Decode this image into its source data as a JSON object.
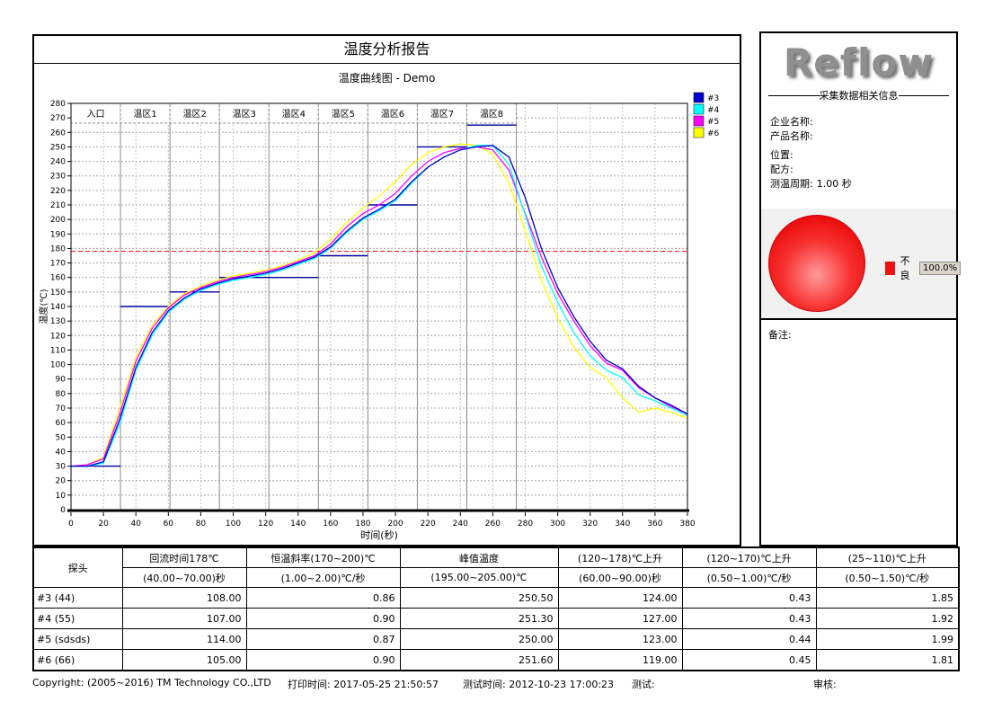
{
  "report": {
    "title": "温度分析报告",
    "chart_title": "温度曲线图 - Demo"
  },
  "chart_data": {
    "type": "line",
    "title": "温度曲线图 - Demo",
    "xlabel": "时间(秒)",
    "ylabel": "温度(℃)",
    "xlim": [
      0,
      380
    ],
    "ylim": [
      0,
      280
    ],
    "x_tick_step": 20,
    "y_tick_step": 10,
    "grid": true,
    "legend_position": "top-right-outside",
    "reflow_reference_line_c": 178,
    "reflow_line_color": "#ff0000",
    "setpoint_color": "#0000a0",
    "zone_width_s": 30.5,
    "zones": [
      {
        "label": "入口",
        "setpoint_c": 30
      },
      {
        "label": "温区1",
        "setpoint_c": 140
      },
      {
        "label": "温区2",
        "setpoint_c": 150
      },
      {
        "label": "温区3",
        "setpoint_c": 160
      },
      {
        "label": "温区4",
        "setpoint_c": 160
      },
      {
        "label": "温区5",
        "setpoint_c": 175
      },
      {
        "label": "温区6",
        "setpoint_c": 210
      },
      {
        "label": "温区7",
        "setpoint_c": 250
      },
      {
        "label": "温区8",
        "setpoint_c": 265
      }
    ],
    "x": [
      0,
      10,
      20,
      30,
      40,
      50,
      60,
      70,
      80,
      90,
      100,
      110,
      120,
      130,
      140,
      150,
      160,
      170,
      180,
      190,
      200,
      210,
      220,
      230,
      240,
      250,
      260,
      270,
      280,
      290,
      300,
      310,
      320,
      330,
      340,
      350,
      360,
      370,
      380
    ],
    "series": [
      {
        "name": "#3",
        "color": "#0000d0",
        "values": [
          30,
          30,
          33,
          62,
          98,
          122,
          137,
          146,
          152,
          156,
          159,
          161,
          163,
          166,
          170,
          174,
          181,
          192,
          201,
          207,
          214,
          226,
          236,
          243,
          248,
          250,
          251,
          243,
          215,
          180,
          153,
          133,
          116,
          103,
          97,
          85,
          77,
          72,
          66
        ]
      },
      {
        "name": "#4",
        "color": "#00ffff",
        "values": [
          30,
          30,
          32,
          59,
          96,
          120,
          136,
          145,
          151,
          155,
          158,
          160,
          162,
          165,
          169,
          173,
          180,
          191,
          200,
          206,
          213,
          225,
          236,
          243,
          248,
          251,
          251,
          238,
          203,
          168,
          143,
          122,
          106,
          96,
          91,
          79,
          75,
          70,
          65
        ]
      },
      {
        "name": "#5",
        "color": "#ff00ff",
        "values": [
          30,
          31,
          35,
          66,
          102,
          125,
          139,
          148,
          153,
          157,
          160,
          162,
          164,
          167,
          171,
          175,
          183,
          195,
          204,
          210,
          218,
          230,
          240,
          246,
          249,
          250,
          248,
          234,
          204,
          174,
          149,
          130,
          113,
          101,
          96,
          84,
          77,
          71,
          66
        ]
      },
      {
        "name": "#6",
        "color": "#ffff00",
        "values": [
          30,
          31,
          36,
          70,
          105,
          127,
          140,
          149,
          154,
          158,
          161,
          163,
          165,
          168,
          172,
          177,
          186,
          198,
          208,
          216,
          226,
          238,
          246,
          250,
          252,
          251,
          245,
          225,
          192,
          158,
          132,
          112,
          98,
          91,
          77,
          67,
          70,
          67,
          63
        ]
      }
    ]
  },
  "side_panel": {
    "logo": "Reflow",
    "section_title": "采集数据相关信息",
    "fields": [
      {
        "label": "企业名称:",
        "value": ""
      },
      {
        "label": "产品名称:",
        "value": ""
      },
      {
        "label": "位置:",
        "value": ""
      },
      {
        "label": "配方:",
        "value": ""
      },
      {
        "label": "测温周期:",
        "value": "1.00 秒"
      }
    ],
    "pie": {
      "type": "pie",
      "slices": [
        {
          "label": "不良",
          "value_pct": "100.0%",
          "color": "#ee1111",
          "value": 100.0
        }
      ]
    },
    "remarks_label": "备注:"
  },
  "table": {
    "probe_header": "探头",
    "columns": [
      {
        "top": "回流时间178℃",
        "sub": "(40.00~70.00)秒"
      },
      {
        "top": "恒温斜率(170~200)℃",
        "sub": "(1.00~2.00)℃/秒"
      },
      {
        "top": "峰值温度",
        "sub": "(195.00~205.00)℃"
      },
      {
        "top": "(120~178)℃上升",
        "sub": "(60.00~90.00)秒"
      },
      {
        "top": "(120~170)℃上升",
        "sub": "(0.50~1.00)℃/秒"
      },
      {
        "top": "(25~110)℃上升",
        "sub": "(0.50~1.50)℃/秒"
      }
    ],
    "rows": [
      {
        "probe": "#3 (44)",
        "values": [
          "108.00",
          "0.86",
          "250.50",
          "124.00",
          "0.43",
          "1.85"
        ]
      },
      {
        "probe": "#4 (55)",
        "values": [
          "107.00",
          "0.90",
          "251.30",
          "127.00",
          "0.43",
          "1.92"
        ]
      },
      {
        "probe": "#5 (sdsds)",
        "values": [
          "114.00",
          "0.87",
          "250.00",
          "123.00",
          "0.44",
          "1.99"
        ]
      },
      {
        "probe": "#6 (66)",
        "values": [
          "105.00",
          "0.90",
          "251.60",
          "119.00",
          "0.45",
          "1.81"
        ]
      }
    ]
  },
  "footer": {
    "copyright": "Copyright: (2005~2016) TM Technology CO.,LTD",
    "print_time_label": "打印时间: 2017-05-25 21:50:57",
    "test_time_label": "测试时间: 2012-10-23 17:00:23",
    "tester_label": "测试:",
    "reviewer_label": "审核:"
  }
}
